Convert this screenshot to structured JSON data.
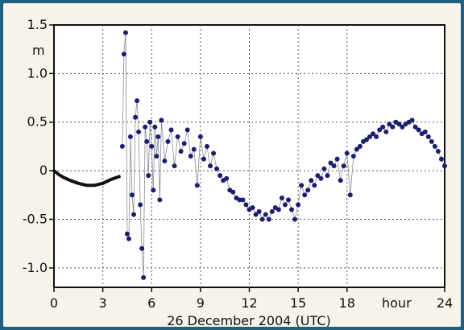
{
  "chart_data": {
    "type": "scatter",
    "title": "",
    "xlabel": "26 December 2004 (UTC)",
    "ylabel": "m",
    "x_unit_label": "hour",
    "xlim": [
      0,
      24
    ],
    "ylim": [
      -1.2,
      1.5
    ],
    "x_ticks": [
      0,
      3,
      6,
      9,
      12,
      15,
      18,
      24
    ],
    "x_tick_labels": [
      "0",
      "3",
      "6",
      "9",
      "12",
      "15",
      "18",
      "24"
    ],
    "y_ticks": [
      1.5,
      1.0,
      0.5,
      0,
      -0.5,
      -1.0
    ],
    "y_tick_labels": [
      "1.5",
      "1.0",
      "0.5",
      "0",
      "-0.5",
      "-1.0"
    ],
    "grid": true,
    "series": [
      {
        "style": "line",
        "color": "#111111",
        "x": [
          0.0,
          0.3,
          0.6,
          1.0,
          1.5,
          2.0,
          2.5,
          3.0,
          3.5,
          4.0
        ],
        "y": [
          0.0,
          -0.04,
          -0.07,
          -0.1,
          -0.13,
          -0.15,
          -0.15,
          -0.13,
          -0.09,
          -0.06
        ]
      },
      {
        "style": "markers",
        "color": "#1c1f6e",
        "x": [
          4.2,
          4.3,
          4.4,
          4.5,
          4.6,
          4.7,
          4.8,
          4.9,
          5.0,
          5.1,
          5.2,
          5.3,
          5.4,
          5.5,
          5.6,
          5.7,
          5.8,
          5.9,
          6.0,
          6.1,
          6.2,
          6.3,
          6.4,
          6.5,
          6.6,
          6.8,
          7.0,
          7.2,
          7.4,
          7.6,
          7.8,
          8.0,
          8.2,
          8.4,
          8.6,
          8.8,
          9.0,
          9.2,
          9.4,
          9.6,
          9.8,
          10.0,
          10.2,
          10.4,
          10.6,
          10.8,
          11.0,
          11.2,
          11.4,
          11.6,
          11.8,
          12.0,
          12.2,
          12.4,
          12.6,
          12.8,
          13.0,
          13.2,
          13.4,
          13.6,
          13.8,
          14.0,
          14.2,
          14.4,
          14.6,
          14.8,
          15.0,
          15.2,
          15.4,
          15.6,
          15.8,
          16.0,
          16.2,
          16.4,
          16.6,
          16.8,
          17.0,
          17.2,
          17.4,
          17.6,
          17.8,
          18.0,
          18.2,
          18.4,
          18.6,
          18.8,
          19.0,
          19.2,
          19.4,
          19.6,
          19.8,
          20.0,
          20.2,
          20.4,
          20.6,
          20.8,
          21.0,
          21.2,
          21.4,
          21.6,
          21.8,
          22.0,
          22.2,
          22.4,
          22.6,
          22.8,
          23.0,
          23.2,
          23.4,
          23.6,
          23.8,
          24.0
        ],
        "y": [
          0.25,
          1.2,
          1.42,
          -0.65,
          -0.7,
          0.35,
          -0.25,
          -0.45,
          0.55,
          0.72,
          0.4,
          -0.35,
          -0.8,
          -1.1,
          0.45,
          0.3,
          -0.05,
          0.5,
          0.25,
          -0.2,
          0.45,
          0.15,
          0.35,
          -0.3,
          0.52,
          0.1,
          0.3,
          0.42,
          0.05,
          0.35,
          0.2,
          0.28,
          0.42,
          0.15,
          0.22,
          -0.15,
          0.35,
          0.12,
          0.25,
          0.05,
          0.18,
          0.02,
          -0.05,
          -0.1,
          -0.08,
          -0.2,
          -0.22,
          -0.28,
          -0.3,
          -0.3,
          -0.35,
          -0.4,
          -0.38,
          -0.45,
          -0.42,
          -0.5,
          -0.45,
          -0.5,
          -0.42,
          -0.38,
          -0.4,
          -0.28,
          -0.35,
          -0.3,
          -0.4,
          -0.5,
          -0.35,
          -0.15,
          -0.25,
          -0.2,
          -0.1,
          -0.15,
          -0.05,
          -0.08,
          0.02,
          -0.05,
          0.08,
          0.05,
          0.12,
          -0.1,
          0.05,
          0.18,
          -0.25,
          0.15,
          0.22,
          0.25,
          0.3,
          0.32,
          0.35,
          0.38,
          0.35,
          0.42,
          0.45,
          0.4,
          0.48,
          0.45,
          0.5,
          0.48,
          0.45,
          0.48,
          0.5,
          0.52,
          0.45,
          0.42,
          0.38,
          0.4,
          0.35,
          0.3,
          0.25,
          0.2,
          0.12,
          0.05
        ]
      }
    ]
  }
}
